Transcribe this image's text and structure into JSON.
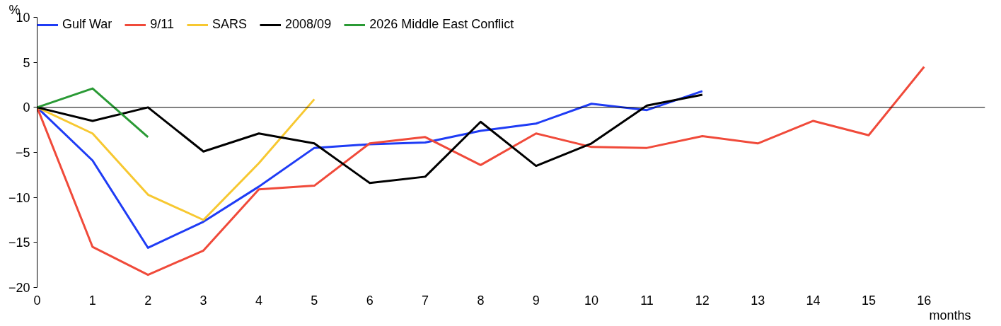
{
  "chart_data": {
    "type": "line",
    "xlabel": "months",
    "ylabel": "%",
    "x": [
      0,
      1,
      2,
      3,
      4,
      5,
      6,
      7,
      8,
      9,
      10,
      11,
      12,
      13,
      14,
      15,
      16
    ],
    "series": [
      {
        "name": "Gulf War",
        "color": "#1f3cf5",
        "values": [
          0,
          -5.9,
          -15.6,
          -12.7,
          -8.8,
          -4.5,
          -4.1,
          -3.9,
          -2.6,
          -1.8,
          0.4,
          -0.3,
          1.8,
          null,
          null,
          null,
          null
        ]
      },
      {
        "name": "9/11",
        "color": "#f04a3a",
        "values": [
          0,
          -15.5,
          -18.6,
          -15.9,
          -9.1,
          -8.7,
          -4.0,
          -3.3,
          -6.4,
          -2.9,
          -4.4,
          -4.5,
          -3.2,
          -4.0,
          -1.5,
          -3.1,
          4.5
        ]
      },
      {
        "name": "SARS",
        "color": "#f7c831",
        "values": [
          0,
          -2.9,
          -9.7,
          -12.5,
          -6.2,
          0.9,
          null,
          null,
          null,
          null,
          null,
          null,
          null,
          null,
          null,
          null,
          null
        ]
      },
      {
        "name": "2008/09",
        "color": "#000000",
        "values": [
          0,
          -1.5,
          0,
          -4.9,
          -2.9,
          -4.0,
          -8.4,
          -7.7,
          -1.6,
          -6.5,
          -4.0,
          0.2,
          1.4,
          null,
          null,
          null,
          null
        ]
      },
      {
        "name": "2026 Middle East Conflict",
        "color": "#2a9a35",
        "values": [
          0,
          2.1,
          -3.3,
          null,
          null,
          null,
          null,
          null,
          null,
          null,
          null,
          null,
          null,
          null,
          null,
          null,
          null
        ]
      }
    ],
    "xlim": [
      0,
      17.1
    ],
    "xticks": [
      0,
      1,
      2,
      3,
      4,
      5,
      6,
      7,
      8,
      9,
      10,
      11,
      12,
      13,
      14,
      15,
      16
    ],
    "ylim": [
      -20,
      10
    ],
    "yticks": [
      -20,
      -15,
      -10,
      -5,
      0,
      5,
      10
    ],
    "ref_lines": [
      {
        "axis": "y",
        "value": 0,
        "label": null,
        "color": "#000000"
      }
    ],
    "grid": false,
    "legend": "top",
    "marker": "none",
    "line_style": "solid"
  }
}
